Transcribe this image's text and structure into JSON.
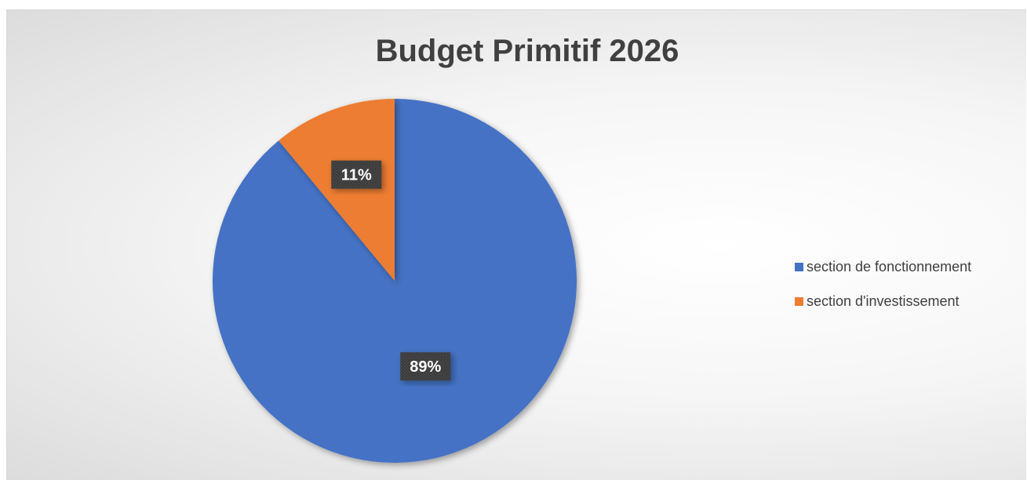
{
  "chart_data": {
    "type": "pie",
    "title": "Budget Primitif 2026",
    "categories": [
      "section de fonctionnement",
      "section d'investissement"
    ],
    "values": [
      89,
      11
    ],
    "data_labels": [
      "89%",
      "11%"
    ],
    "colors": [
      "#4472C4",
      "#ED7D31"
    ],
    "start_angle_deg": 0,
    "direction": "clockwise",
    "legend_position": "right"
  }
}
